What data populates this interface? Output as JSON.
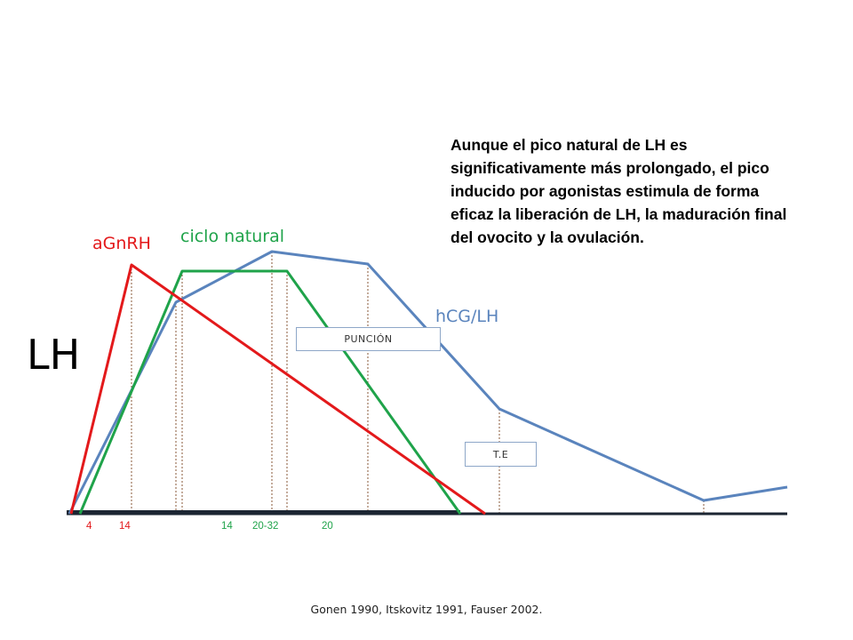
{
  "note_text": "Aunque el pico natural de LH es significativamente más prolongado, el pico inducido por agonistas estimula de forma eficaz la liberación de LH, la maduración final del ovocito y la ovulación.",
  "y_label": "LH",
  "series": {
    "agnrh": {
      "label": "aGnRH",
      "color": "#e3191b"
    },
    "natural": {
      "label": "ciclo natural",
      "color": "#1fa34a"
    },
    "hcg": {
      "label": "hCG/LH",
      "color": "#5a84bd"
    }
  },
  "boxes": {
    "puncion": "PUNCIÓN",
    "te": "T.E"
  },
  "ticks": [
    {
      "text": "4",
      "color": "#e3191b"
    },
    {
      "text": "14",
      "color": "#e3191b"
    },
    {
      "text": "14",
      "color": "#1fa34a"
    },
    {
      "text": "20-32",
      "color": "#1fa34a"
    },
    {
      "text": "20",
      "color": "#1fa34a"
    }
  ],
  "citation": "Gonen 1990, Itskovitz 1991, Fauser 2002."
}
